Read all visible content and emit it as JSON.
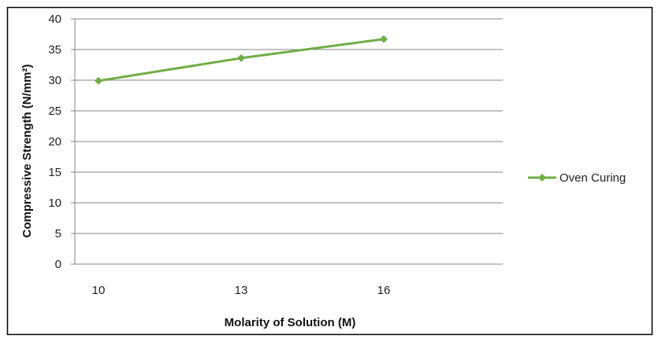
{
  "chart_data": {
    "type": "line",
    "categories": [
      "10",
      "13",
      "16"
    ],
    "series": [
      {
        "name": "Oven Curing",
        "values": [
          29.9,
          33.6,
          36.7
        ],
        "color": "#70ad47"
      }
    ],
    "xlabel": "Molarity of Solution (M)",
    "ylabel": "Compressive Strength (N/mm²)",
    "ylim": [
      0,
      40
    ],
    "yticks": [
      0,
      5,
      10,
      15,
      20,
      25,
      30,
      35,
      40
    ],
    "grid": true,
    "legend_position": "right",
    "marker": "diamond"
  }
}
